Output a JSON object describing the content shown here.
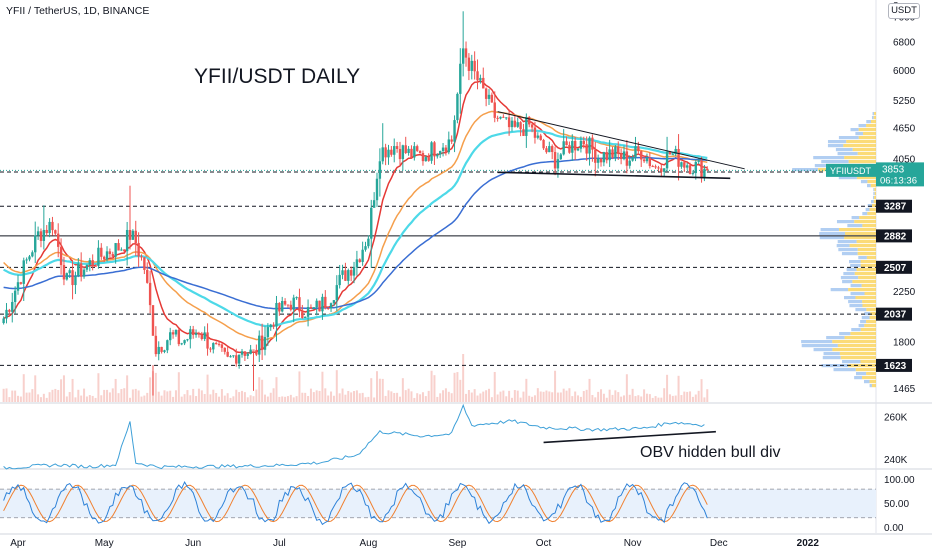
{
  "header": {
    "symbol": "YFII / TetherUS, 1D, BINANCE",
    "currency_button": "USDT",
    "annotation_main": "YFII/USDT DAILY",
    "annotation_obv": "OBV hidden bull div"
  },
  "chart_data": [
    {
      "type": "candlestick",
      "title": "YFII / TetherUS, 1D, BINANCE",
      "y_scale": "log",
      "ylim": [
        1380,
        8200
      ],
      "price_ticks": [
        1465,
        1800,
        2250,
        4050,
        4650,
        5250,
        6000,
        6800,
        7600
      ],
      "x_tick_labels": [
        "Apr",
        "May",
        "Jun",
        "Jul",
        "Aug",
        "Sep",
        "Oct",
        "Nov",
        "Dec",
        "2022"
      ],
      "horizontal_levels": [
        {
          "value": 3825,
          "style": "dashed"
        },
        {
          "value": 3287,
          "style": "dashed"
        },
        {
          "value": 2882,
          "style": "solid"
        },
        {
          "value": 2507,
          "style": "dashed"
        },
        {
          "value": 2037,
          "style": "dashed"
        },
        {
          "value": 1623,
          "style": "dashed"
        }
      ],
      "last_price": {
        "symbol": "YFIIUSDT",
        "price": "3853",
        "countdown": "06:13:36"
      },
      "cutoff_label": "8",
      "price_path": [
        {
          "date": "Mar 27",
          "price": 2000
        },
        {
          "date": "Apr 3",
          "price": 2500
        },
        {
          "date": "Apr 8",
          "price": 2900
        },
        {
          "date": "Apr 13",
          "price": 3050
        },
        {
          "date": "Apr 18",
          "price": 2350
        },
        {
          "date": "Apr 22",
          "price": 2450
        },
        {
          "date": "Apr 28",
          "price": 2600
        },
        {
          "date": "May 3",
          "price": 2700
        },
        {
          "date": "May 7",
          "price": 2750
        },
        {
          "date": "May 10",
          "price": 2900
        },
        {
          "date": "May 12",
          "price": 2800
        },
        {
          "date": "May 15",
          "price": 2500
        },
        {
          "date": "May 19",
          "price": 1750
        },
        {
          "date": "May 24",
          "price": 1850
        },
        {
          "date": "May 28",
          "price": 1800
        },
        {
          "date": "Jun 3",
          "price": 1900
        },
        {
          "date": "Jun 8",
          "price": 1750
        },
        {
          "date": "Jun 13",
          "price": 1650
        },
        {
          "date": "Jun 18",
          "price": 1750
        },
        {
          "date": "Jun 22",
          "price": 1700
        },
        {
          "date": "Jun 25",
          "price": 1820
        },
        {
          "date": "Jun 30",
          "price": 2050
        },
        {
          "date": "Jul 5",
          "price": 2150
        },
        {
          "date": "Jul 12",
          "price": 2050
        },
        {
          "date": "Jul 18",
          "price": 2180
        },
        {
          "date": "Jul 23",
          "price": 2400
        },
        {
          "date": "Jul 28",
          "price": 2600
        },
        {
          "date": "Aug 1",
          "price": 2900
        },
        {
          "date": "Aug 5",
          "price": 4200
        },
        {
          "date": "Aug 10",
          "price": 4300
        },
        {
          "date": "Aug 15",
          "price": 4150
        },
        {
          "date": "Aug 20",
          "price": 4100
        },
        {
          "date": "Aug 25",
          "price": 4300
        },
        {
          "date": "Aug 30",
          "price": 4400
        },
        {
          "date": "Sep 3",
          "price": 6600
        },
        {
          "date": "Sep 5",
          "price": 6200
        },
        {
          "date": "Sep 9",
          "price": 5600
        },
        {
          "date": "Sep 14",
          "price": 4900
        },
        {
          "date": "Sep 20",
          "price": 4600
        },
        {
          "date": "Sep 26",
          "price": 4700
        },
        {
          "date": "Sep 30",
          "price": 4300
        },
        {
          "date": "Oct 5",
          "price": 4050
        },
        {
          "date": "Oct 10",
          "price": 4300
        },
        {
          "date": "Oct 15",
          "price": 4400
        },
        {
          "date": "Oct 20",
          "price": 4100
        },
        {
          "date": "Oct 25",
          "price": 4150
        },
        {
          "date": "Oct 30",
          "price": 4050
        },
        {
          "date": "Nov 4",
          "price": 4200
        },
        {
          "date": "Nov 9",
          "price": 3900
        },
        {
          "date": "Nov 14",
          "price": 4150
        },
        {
          "date": "Nov 19",
          "price": 4000
        },
        {
          "date": "Nov 24",
          "price": 3900
        },
        {
          "date": "Nov 27",
          "price": 3853
        }
      ],
      "trendlines": [
        {
          "name": "descending resistance",
          "from": {
            "date": "Sep 15",
            "price": 5000
          },
          "to": {
            "date": "Dec 10",
            "price": 3880
          }
        },
        {
          "name": "horizontal support",
          "from": {
            "date": "Sep 15",
            "price": 3820
          },
          "to": {
            "date": "Dec 5",
            "price": 3720
          }
        },
        {
          "name": "OBV rising support",
          "panel": "obv",
          "from": {
            "date": "Oct 1",
            "value": 248
          },
          "to": {
            "date": "Nov 30",
            "value": 253
          }
        }
      ]
    },
    {
      "type": "line",
      "name": "OBV",
      "y_ticks": [
        {
          "value": 240,
          "label": "240K"
        },
        {
          "value": 260,
          "label": "260K"
        }
      ],
      "ylim": [
        236,
        266
      ]
    },
    {
      "type": "line",
      "name": "Stochastic RSI",
      "y_ticks": [
        0,
        50,
        100
      ],
      "y_tick_labels": [
        "0.00",
        "50.00",
        "100.00"
      ],
      "ylim": [
        -12,
        120
      ],
      "band": [
        20,
        80
      ]
    }
  ],
  "colors": {
    "up": "#26a69a",
    "down": "#ef5350",
    "ema_short": "#e53935",
    "ema_mid": "#f59f4c",
    "ema_cyan": "#4dd9e8",
    "ema_long": "#3a6ed3",
    "obv_line": "#3ea0d8",
    "stoch_k": "#2e82d8",
    "stoch_d": "#f08030",
    "label_bg": "#131722",
    "price_tag": "#26a69a"
  }
}
